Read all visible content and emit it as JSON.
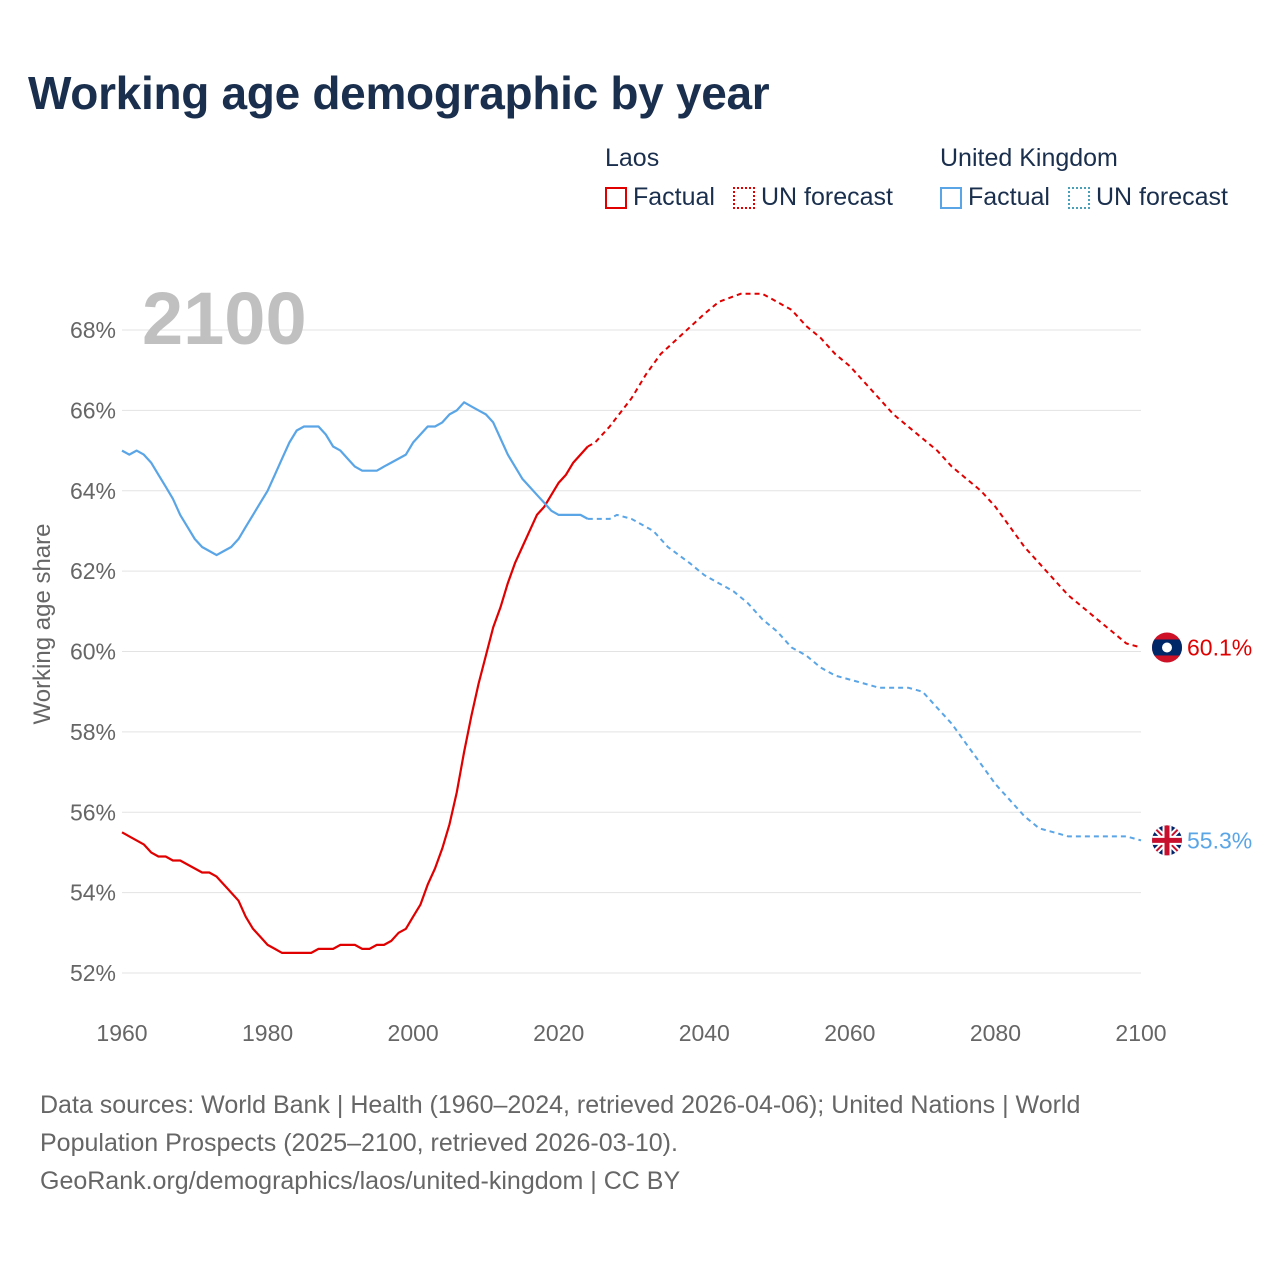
{
  "title": "Working age demographic by year",
  "legend": {
    "groups": [
      {
        "name": "Laos",
        "factual_label": "Factual",
        "forecast_label": "UN forecast",
        "color": "#e00000"
      },
      {
        "name": "United Kingdom",
        "factual_label": "Factual",
        "forecast_label": "UN forecast",
        "color": "#5aa5e6"
      }
    ]
  },
  "year_watermark": "2100",
  "end_labels": {
    "laos": "60.1%",
    "uk": "55.3%"
  },
  "source": {
    "line1": "Data sources: World Bank | Health (1960–2024, retrieved 2026-04-06); United Nations | World",
    "line2": "Population Prospects (2025–2100, retrieved 2026-03-10).",
    "line3": "GeoRank.org/demographics/laos/united-kingdom | CC BY"
  },
  "chart_data": {
    "type": "line",
    "title": "Working age demographic by year",
    "xlabel": "",
    "ylabel": "Working age share",
    "xlim": [
      1960,
      2100
    ],
    "ylim": [
      52,
      68
    ],
    "x_ticks": [
      1960,
      1980,
      2000,
      2020,
      2040,
      2060,
      2080,
      2100
    ],
    "x_tick_labels": [
      "1960",
      "1980",
      "2000",
      "2020",
      "2040",
      "2060",
      "2080",
      "2100"
    ],
    "y_ticks": [
      52,
      54,
      56,
      58,
      60,
      62,
      64,
      66,
      68
    ],
    "y_tick_labels": [
      "52%",
      "54%",
      "56%",
      "58%",
      "60%",
      "62%",
      "64%",
      "66%",
      "68%"
    ],
    "grid": true,
    "legend_position": "top-right",
    "series": [
      {
        "name": "Laos",
        "color": "#e00000",
        "factual": {
          "x": [
            1960,
            1962,
            1963,
            1964,
            1965,
            1966,
            1967,
            1968,
            1969,
            1970,
            1971,
            1972,
            1973,
            1974,
            1975,
            1976,
            1977,
            1978,
            1979,
            1980,
            1981,
            1982,
            1983,
            1984,
            1985,
            1986,
            1987,
            1988,
            1989,
            1990,
            1991,
            1992,
            1993,
            1994,
            1995,
            1996,
            1997,
            1998,
            1999,
            2000,
            2001,
            2002,
            2003,
            2004,
            2005,
            2006,
            2007,
            2008,
            2009,
            2010,
            2011,
            2012,
            2013,
            2014,
            2015,
            2016,
            2017,
            2018,
            2019,
            2020,
            2021,
            2022,
            2023,
            2024
          ],
          "y": [
            55.5,
            55.3,
            55.2,
            55.0,
            54.9,
            54.9,
            54.8,
            54.8,
            54.7,
            54.6,
            54.5,
            54.5,
            54.4,
            54.2,
            54.0,
            53.8,
            53.4,
            53.1,
            52.9,
            52.7,
            52.6,
            52.5,
            52.5,
            52.5,
            52.5,
            52.5,
            52.6,
            52.6,
            52.6,
            52.7,
            52.7,
            52.7,
            52.6,
            52.6,
            52.7,
            52.7,
            52.8,
            53.0,
            53.1,
            53.4,
            53.7,
            54.2,
            54.6,
            55.1,
            55.7,
            56.5,
            57.5,
            58.4,
            59.2,
            59.9,
            60.6,
            61.1,
            61.7,
            62.2,
            62.6,
            63.0,
            63.4,
            63.6,
            63.9,
            64.2,
            64.4,
            64.7,
            64.9,
            65.1
          ]
        },
        "forecast": {
          "x": [
            2024,
            2025,
            2027,
            2030,
            2032,
            2034,
            2037,
            2040,
            2042,
            2045,
            2048,
            2050,
            2052,
            2054,
            2056,
            2058,
            2060,
            2062,
            2064,
            2066,
            2068,
            2070,
            2072,
            2074,
            2076,
            2078,
            2080,
            2082,
            2084,
            2086,
            2088,
            2090,
            2092,
            2094,
            2096,
            2098,
            2100
          ],
          "y": [
            65.1,
            65.2,
            65.6,
            66.3,
            66.9,
            67.4,
            67.9,
            68.4,
            68.7,
            68.9,
            68.9,
            68.7,
            68.5,
            68.1,
            67.8,
            67.4,
            67.1,
            66.7,
            66.3,
            65.9,
            65.6,
            65.3,
            65.0,
            64.6,
            64.3,
            64.0,
            63.6,
            63.1,
            62.6,
            62.2,
            61.8,
            61.4,
            61.1,
            60.8,
            60.5,
            60.2,
            60.1
          ]
        },
        "end_value": 60.1
      },
      {
        "name": "United Kingdom",
        "color": "#5aa5e6",
        "factual": {
          "x": [
            1960,
            1961,
            1962,
            1963,
            1964,
            1965,
            1966,
            1967,
            1968,
            1969,
            1970,
            1971,
            1972,
            1973,
            1974,
            1975,
            1976,
            1977,
            1978,
            1979,
            1980,
            1981,
            1982,
            1983,
            1984,
            1985,
            1986,
            1987,
            1988,
            1989,
            1990,
            1991,
            1992,
            1993,
            1994,
            1995,
            1996,
            1997,
            1998,
            1999,
            2000,
            2001,
            2002,
            2003,
            2004,
            2005,
            2006,
            2007,
            2008,
            2009,
            2010,
            2011,
            2012,
            2013,
            2014,
            2015,
            2016,
            2017,
            2018,
            2019,
            2020,
            2021,
            2022,
            2023,
            2024
          ],
          "y": [
            65.0,
            64.9,
            65.0,
            64.9,
            64.7,
            64.4,
            64.1,
            63.8,
            63.4,
            63.1,
            62.8,
            62.6,
            62.5,
            62.4,
            62.5,
            62.6,
            62.8,
            63.1,
            63.4,
            63.7,
            64.0,
            64.4,
            64.8,
            65.2,
            65.5,
            65.6,
            65.6,
            65.6,
            65.4,
            65.1,
            65.0,
            64.8,
            64.6,
            64.5,
            64.5,
            64.5,
            64.6,
            64.7,
            64.8,
            64.9,
            65.2,
            65.4,
            65.6,
            65.6,
            65.7,
            65.9,
            66.0,
            66.2,
            66.1,
            66.0,
            65.9,
            65.7,
            65.3,
            64.9,
            64.6,
            64.3,
            64.1,
            63.9,
            63.7,
            63.5,
            63.4,
            63.4,
            63.4,
            63.4,
            63.3
          ]
        },
        "forecast": {
          "x": [
            2024,
            2027,
            2028,
            2030,
            2033,
            2035,
            2038,
            2040,
            2042,
            2044,
            2046,
            2048,
            2050,
            2052,
            2054,
            2056,
            2058,
            2060,
            2062,
            2064,
            2066,
            2068,
            2070,
            2072,
            2074,
            2076,
            2078,
            2080,
            2082,
            2084,
            2086,
            2088,
            2090,
            2092,
            2094,
            2096,
            2098,
            2100
          ],
          "y": [
            63.3,
            63.3,
            63.4,
            63.3,
            63.0,
            62.6,
            62.2,
            61.9,
            61.7,
            61.5,
            61.2,
            60.8,
            60.5,
            60.1,
            59.9,
            59.6,
            59.4,
            59.3,
            59.2,
            59.1,
            59.1,
            59.1,
            59.0,
            58.6,
            58.2,
            57.7,
            57.2,
            56.7,
            56.3,
            55.9,
            55.6,
            55.5,
            55.4,
            55.4,
            55.4,
            55.4,
            55.4,
            55.3
          ]
        },
        "end_value": 55.3
      }
    ]
  }
}
